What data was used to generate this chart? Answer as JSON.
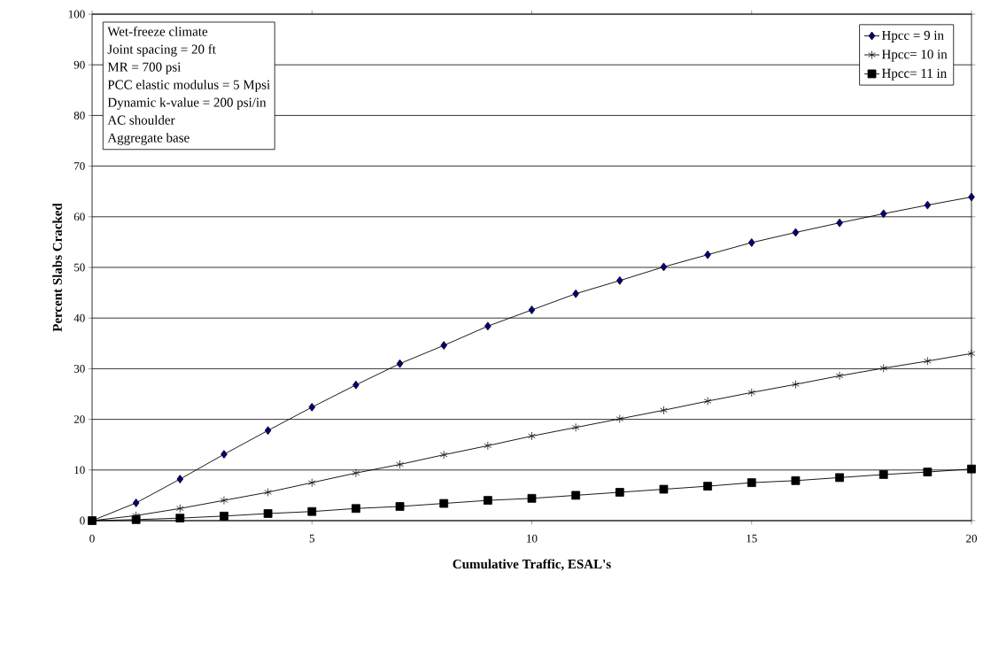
{
  "chart_data": {
    "type": "line",
    "xlabel": "Cumulative Traffic, ESAL's",
    "ylabel": "Percent Slabs Cracked",
    "x": [
      0,
      1,
      2,
      3,
      4,
      5,
      6,
      7,
      8,
      9,
      10,
      11,
      12,
      13,
      14,
      15,
      16,
      17,
      18,
      19,
      20
    ],
    "series": [
      {
        "name": "Hpcc = 9 in",
        "color": "#000080",
        "marker": "diamond",
        "values": [
          0,
          3.5,
          8.2,
          13.1,
          17.8,
          22.4,
          26.8,
          31.0,
          34.6,
          38.4,
          41.6,
          44.8,
          47.4,
          50.1,
          52.5,
          54.9,
          56.9,
          58.8,
          60.6,
          62.3,
          63.9
        ]
      },
      {
        "name": "Hpcc= 10 in",
        "color": "#141414",
        "marker": "cross",
        "values": [
          0,
          1.0,
          2.4,
          4.0,
          5.6,
          7.5,
          9.4,
          11.1,
          13.0,
          14.8,
          16.7,
          18.4,
          20.1,
          21.8,
          23.6,
          25.3,
          26.9,
          28.6,
          30.1,
          31.5,
          33.0
        ]
      },
      {
        "name": "Hpcc= 11 in",
        "color": "#000000",
        "marker": "square",
        "values": [
          0,
          0.2,
          0.5,
          0.9,
          1.4,
          1.8,
          2.4,
          2.8,
          3.4,
          4.0,
          4.4,
          5.0,
          5.6,
          6.2,
          6.8,
          7.5,
          7.9,
          8.5,
          9.1,
          9.6,
          10.2
        ]
      }
    ],
    "xlim": [
      0,
      20
    ],
    "xticks": [
      0,
      5,
      10,
      15,
      20
    ],
    "ylim": [
      0,
      100
    ],
    "yticks": [
      0,
      10,
      20,
      30,
      40,
      50,
      60,
      70,
      80,
      90,
      100
    ],
    "grid": "y",
    "legend": "top right",
    "line_style": "solid",
    "annotations": [
      "Wet-freeze climate",
      "Joint spacing = 20 ft",
      "MR = 700 psi",
      "PCC elastic modulus = 5 Mpsi",
      "Dynamic k-value = 200 psi/in",
      "AC shoulder",
      "Aggregate base"
    ]
  }
}
